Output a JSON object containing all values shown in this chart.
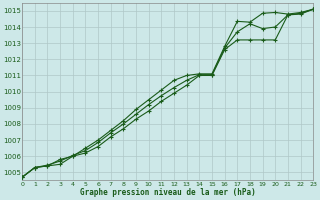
{
  "title": "Graphe pression niveau de la mer (hPa)",
  "bg_color": "#cde8e8",
  "grid_color": "#b0c8c8",
  "line_color": "#1a5c1a",
  "xlim": [
    0,
    23
  ],
  "ylim": [
    1004.5,
    1015.5
  ],
  "xticks": [
    0,
    1,
    2,
    3,
    4,
    5,
    6,
    7,
    8,
    9,
    10,
    11,
    12,
    13,
    14,
    15,
    16,
    17,
    18,
    19,
    20,
    21,
    22,
    23
  ],
  "yticks": [
    1005,
    1006,
    1007,
    1008,
    1009,
    1010,
    1011,
    1012,
    1013,
    1014,
    1015
  ],
  "series1_x": [
    0,
    1,
    2,
    3,
    4,
    5,
    6,
    7,
    8,
    9,
    10,
    11,
    12,
    13,
    14,
    15,
    16,
    17,
    18,
    19,
    20,
    21,
    22,
    23
  ],
  "series1_y": [
    1004.7,
    1005.3,
    1005.4,
    1005.5,
    1006.0,
    1006.2,
    1006.6,
    1007.2,
    1007.7,
    1008.3,
    1008.8,
    1009.4,
    1009.9,
    1010.4,
    1011.0,
    1011.0,
    1012.6,
    1013.2,
    1013.2,
    1013.2,
    1013.2,
    1014.75,
    1014.8,
    1015.1
  ],
  "series2_x": [
    0,
    1,
    2,
    3,
    4,
    5,
    6,
    7,
    8,
    9,
    10,
    11,
    12,
    13,
    14,
    15,
    16,
    17,
    18,
    19,
    20,
    21,
    22,
    23
  ],
  "series2_y": [
    1004.7,
    1005.3,
    1005.4,
    1005.8,
    1006.0,
    1006.5,
    1007.0,
    1007.6,
    1008.2,
    1008.9,
    1009.5,
    1010.1,
    1010.7,
    1011.0,
    1011.1,
    1011.1,
    1012.8,
    1014.35,
    1014.3,
    1014.85,
    1014.9,
    1014.8,
    1014.9,
    1015.1
  ],
  "series3_x": [
    0,
    1,
    2,
    3,
    4,
    5,
    6,
    7,
    8,
    9,
    10,
    11,
    12,
    13,
    14,
    15,
    16,
    17,
    18,
    19,
    20,
    21,
    22,
    23
  ],
  "series3_y": [
    1004.7,
    1005.3,
    1005.45,
    1005.7,
    1006.05,
    1006.35,
    1006.85,
    1007.45,
    1008.0,
    1008.6,
    1009.2,
    1009.75,
    1010.25,
    1010.7,
    1011.05,
    1011.05,
    1012.7,
    1013.7,
    1014.2,
    1013.9,
    1014.0,
    1014.75,
    1014.85,
    1015.1
  ]
}
